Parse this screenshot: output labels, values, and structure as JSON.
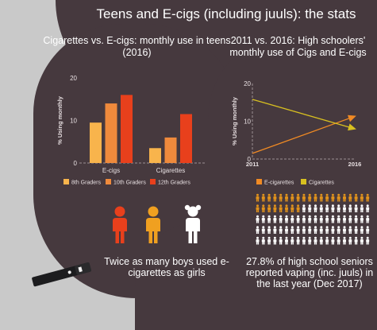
{
  "title": "Teens and E-cigs (including juuls): the stats",
  "colors": {
    "background": "#c9c9c9",
    "panel": "#46393e",
    "grade8": "#f8b44c",
    "grade10": "#ef8a3c",
    "grade12": "#e8401c",
    "ecig_line": "#f08a24",
    "cig_line": "#d8c020"
  },
  "chart_data": [
    {
      "type": "bar",
      "title": "Cigarettes vs. E-cigs: monthly use in teens (2016)",
      "ylabel": "% Using monthly",
      "ylim": [
        0,
        20
      ],
      "yticks": [
        0,
        10,
        20
      ],
      "categories": [
        "E-cigs",
        "Cigarettes"
      ],
      "series": [
        {
          "name": "8th Graders",
          "values": [
            9.5,
            3.5
          ]
        },
        {
          "name": "10th Graders",
          "values": [
            14,
            6
          ]
        },
        {
          "name": "12th Graders",
          "values": [
            16,
            11.5
          ]
        }
      ],
      "legend": "bottom"
    },
    {
      "type": "line",
      "title": "2011 vs. 2016: High schoolers' monthly use of Cigs and E-cigs",
      "ylabel": "% Using monthly",
      "ylim": [
        0,
        20
      ],
      "yticks": [
        0,
        10,
        20
      ],
      "x": [
        "2011",
        "2016"
      ],
      "series": [
        {
          "name": "E-cigarettes",
          "values": [
            1.5,
            11.3
          ]
        },
        {
          "name": "Cigarettes",
          "values": [
            15.8,
            8.0
          ]
        }
      ],
      "legend": "bottom"
    },
    {
      "type": "pictogram",
      "total": 100,
      "highlighted": 28,
      "caption": "27.8% of high school seniors reported vaping (inc. juuls) in the last year (Dec 2017)"
    }
  ],
  "figures": {
    "caption": "Twice as many boys used e-cigarettes as girls",
    "people": [
      {
        "color": "#e8401c"
      },
      {
        "color": "#f0a020"
      },
      {
        "color": "#ffffff"
      }
    ]
  }
}
